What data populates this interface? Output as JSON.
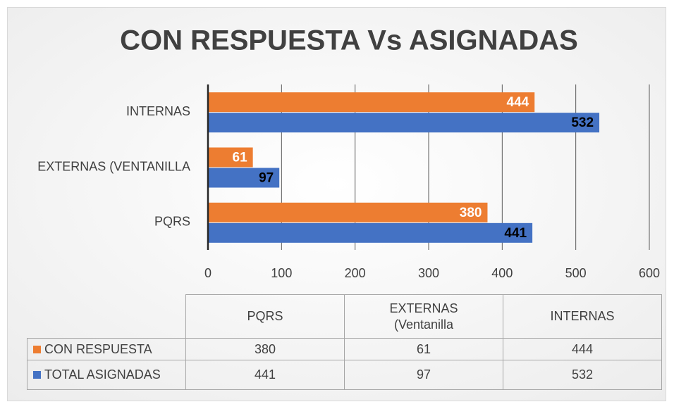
{
  "chart_data": {
    "type": "hbar",
    "title": "CON RESPUESTA Vs  ASIGNADAS",
    "categories": [
      "PQRS",
      "EXTERNAS  (VENTANILLA",
      "INTERNAS"
    ],
    "series": [
      {
        "name": "CON RESPUESTA",
        "color": "#ed7d31",
        "values": [
          380,
          61,
          444
        ]
      },
      {
        "name": "TOTAL ASIGNADAS",
        "color": "#4472c4",
        "values": [
          441,
          97,
          532
        ]
      }
    ],
    "xlim": [
      0,
      600
    ],
    "xticks": [
      0,
      100,
      200,
      300,
      400,
      500,
      600
    ],
    "grid": true,
    "table_headers": [
      "PQRS",
      "EXTERNAS (Ventanilla",
      "INTERNAS"
    ]
  }
}
